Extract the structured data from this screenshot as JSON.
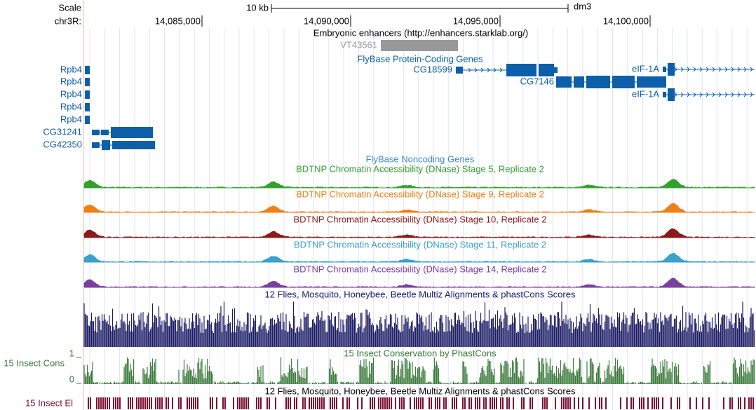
{
  "header": {
    "scale": "Scale",
    "chrom": "chr3R:",
    "scalebar": "10 kb",
    "assembly": "dm3",
    "ticks": [
      "14,085,000",
      "14,090,000",
      "14,095,000",
      "14,100,000"
    ]
  },
  "tracks": {
    "enhancers": {
      "title": "Embryonic enhancers (http://enhancers.starklab.org/)",
      "items": [
        "VT43561"
      ]
    },
    "genes": {
      "title": "FlyBase Protein-Coding Genes",
      "items": [
        "Rpb4",
        "Rpb4",
        "Rpb4",
        "Rpb4",
        "Rpb4",
        "CG31241",
        "CG42350",
        "CG18599",
        "CG7146",
        "eIF-1A",
        "eIF-1A"
      ]
    },
    "noncoding": {
      "title": "FlyBase Noncoding Genes"
    },
    "dnase": [
      "BDTNP Chromatin Accessibility (DNase) Stage 5, Replicate 2",
      "BDTNP Chromatin Accessibility (DNase) Stage 9, Replicate 2",
      "BDTNP Chromatin Accessibility (DNase) Stage 10, Replicate 2",
      "BDTNP Chromatin Accessibility (DNase) Stage 11, Replicate 2",
      "BDTNP Chromatin Accessibility (DNase) Stage 14, Replicate 2"
    ],
    "multiz": {
      "title": "12 Flies, Mosquito, Honeybee, Beetle Multiz Alignments & phastCons Scores"
    },
    "cons": {
      "title": "15 Insect Conservation by PhastCons",
      "label": "15 Insect Cons",
      "max": "1",
      "min": "0"
    },
    "elements": {
      "title": "12 Flies, Mosquito, Honeybee, Beetle Multiz Alignments & phastCons Scores",
      "label": "15 Insect El"
    }
  }
}
